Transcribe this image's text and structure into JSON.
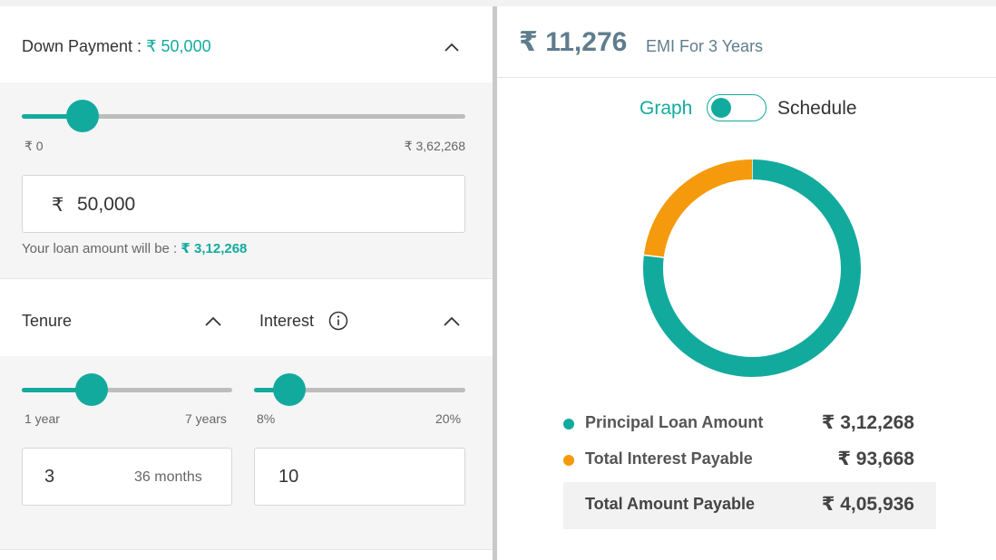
{
  "down_payment": {
    "label": "Down Payment :",
    "value": "₹ 50,000",
    "slider_min": "₹ 0",
    "slider_max": "₹ 3,62,268",
    "slider_fraction": 0.138,
    "currency_symbol": "₹",
    "input_value": "50,000",
    "loan_note_label": "Your loan amount will be :",
    "loan_amount": "₹ 3,12,268"
  },
  "tenure": {
    "label": "Tenure",
    "slider_min": "1 year",
    "slider_max": "7 years",
    "slider_fraction": 0.333,
    "input_value": "3",
    "months_text": "36 months"
  },
  "interest": {
    "label": "Interest",
    "slider_min": "8%",
    "slider_max": "20%",
    "slider_fraction": 0.167,
    "input_value": "10"
  },
  "result": {
    "emi_amount": "₹ 11,276",
    "emi_caption": "EMI For 3 Years",
    "toggle_left": "Graph",
    "toggle_right": "Schedule"
  },
  "breakdown": {
    "principal_label": "Principal Loan Amount",
    "principal_value": "₹ 3,12,268",
    "interest_label": "Total Interest Payable",
    "interest_value": "₹ 93,668",
    "total_label": "Total Amount Payable",
    "total_value": "₹ 4,05,936"
  },
  "colors": {
    "accent": "#13aa9e",
    "interest": "#f59a0c"
  },
  "chart_data": {
    "type": "pie",
    "categories": [
      "Principal Loan Amount",
      "Total Interest Payable"
    ],
    "values": [
      312268,
      93668
    ]
  }
}
